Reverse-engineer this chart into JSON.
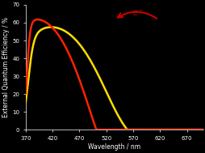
{
  "background_color": "#000000",
  "axes_background": "#000000",
  "tick_color": "#ffffff",
  "label_color": "#ffffff",
  "xlabel": "Wavelength / nm",
  "ylabel": "External Quantum Efficiency / %",
  "xlim": [
    370,
    700
  ],
  "ylim": [
    0,
    70
  ],
  "xticks": [
    370,
    420,
    470,
    520,
    570,
    620,
    670
  ],
  "yticks": [
    0,
    10,
    20,
    30,
    40,
    50,
    60,
    70
  ],
  "red_line_color": "#ff2200",
  "yellow_line_color": "#ffdd00",
  "red_linewidth": 1.8,
  "yellow_linewidth": 1.8,
  "axis_fontsize": 5.5,
  "tick_fontsize": 5.0,
  "arrow_color": "#cc0000",
  "elabel_color": "#cc0000",
  "elabel_fontsize": 7
}
